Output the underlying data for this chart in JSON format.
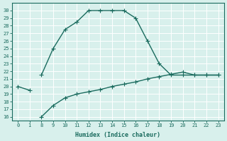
{
  "xlabel": "Humidex (Indice chaleur)",
  "x_labels": [
    "0",
    "1",
    "8",
    "9",
    "10",
    "11",
    "12",
    "13",
    "14",
    "15",
    "16",
    "17",
    "18",
    "19",
    "20",
    "21",
    "22",
    "23"
  ],
  "x_positions": [
    0,
    1,
    2,
    3,
    4,
    5,
    6,
    7,
    8,
    9,
    10,
    11,
    12,
    13,
    14,
    15,
    16,
    17
  ],
  "upper_line_idx": [
    0,
    1,
    2,
    3,
    4,
    5,
    6,
    7,
    8,
    9,
    10,
    11,
    12,
    13,
    14,
    15,
    16,
    17
  ],
  "upper_line_y": [
    20,
    19.5,
    21.5,
    25.0,
    27.5,
    28.5,
    30.0,
    30.0,
    30.0,
    30.0,
    29.0,
    26.0,
    23.0,
    21.5,
    21.5,
    21.5,
    21.5,
    21.5
  ],
  "lower_line_idx": [
    2,
    3,
    4,
    5,
    6,
    7,
    8,
    9,
    10,
    11,
    12,
    13,
    14,
    15,
    16,
    17
  ],
  "lower_line_y": [
    16.0,
    17.5,
    18.5,
    19.0,
    19.3,
    19.6,
    20.0,
    20.3,
    20.6,
    21.0,
    21.3,
    21.6,
    21.9,
    21.5,
    21.5,
    21.5
  ],
  "ylim": [
    15.5,
    31.0
  ],
  "xlim": [
    -0.5,
    17.5
  ],
  "color": "#1a6b5e",
  "bg_color": "#d8f0ec",
  "grid_color": "#ffffff",
  "marker": "+",
  "linewidth": 1.0,
  "markersize": 4,
  "tick_fontsize": 5.0,
  "xlabel_fontsize": 6.0
}
